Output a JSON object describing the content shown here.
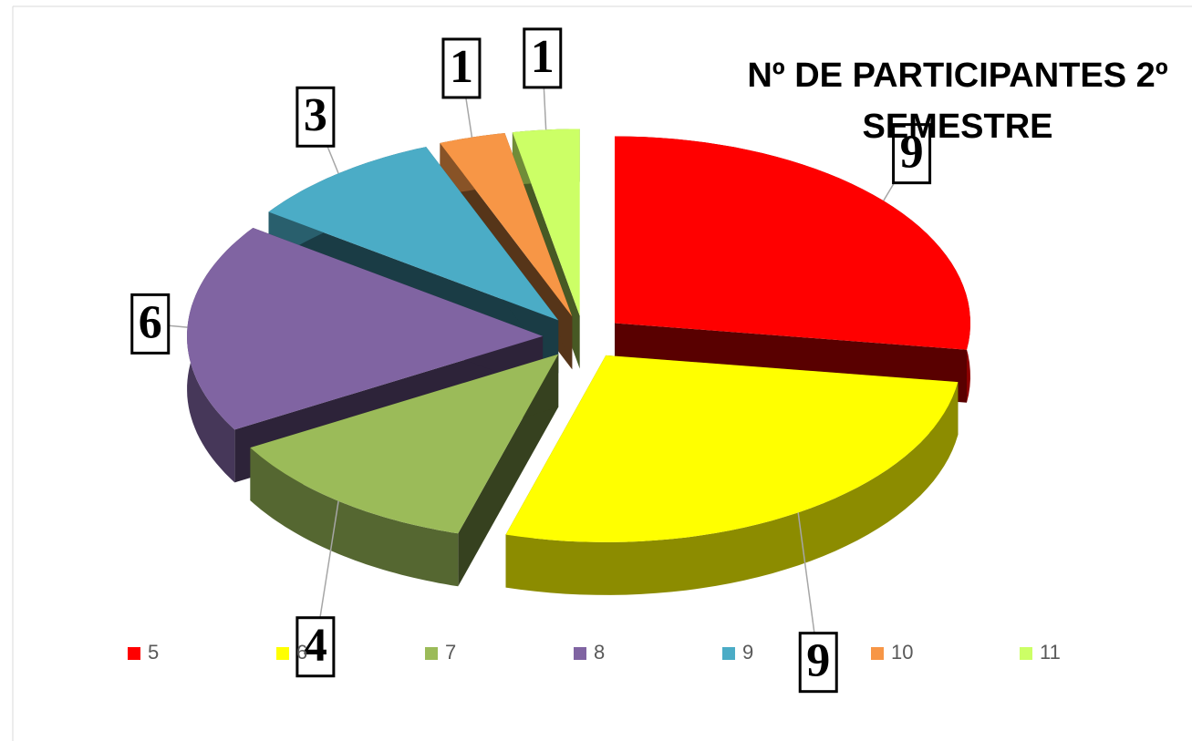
{
  "chart_data": {
    "type": "pie",
    "title": "Nº DE PARTICIPANTES 2º SEMESTRE",
    "categories": [
      "5",
      "6",
      "7",
      "8",
      "9",
      "10",
      "11"
    ],
    "values": [
      9,
      9,
      4,
      6,
      3,
      1,
      1
    ],
    "colors": [
      "#ff0000",
      "#ffff00",
      "#9bbb59",
      "#8064a2",
      "#4bacc6",
      "#f79646",
      "#ccff66"
    ],
    "legend": "bottom"
  }
}
